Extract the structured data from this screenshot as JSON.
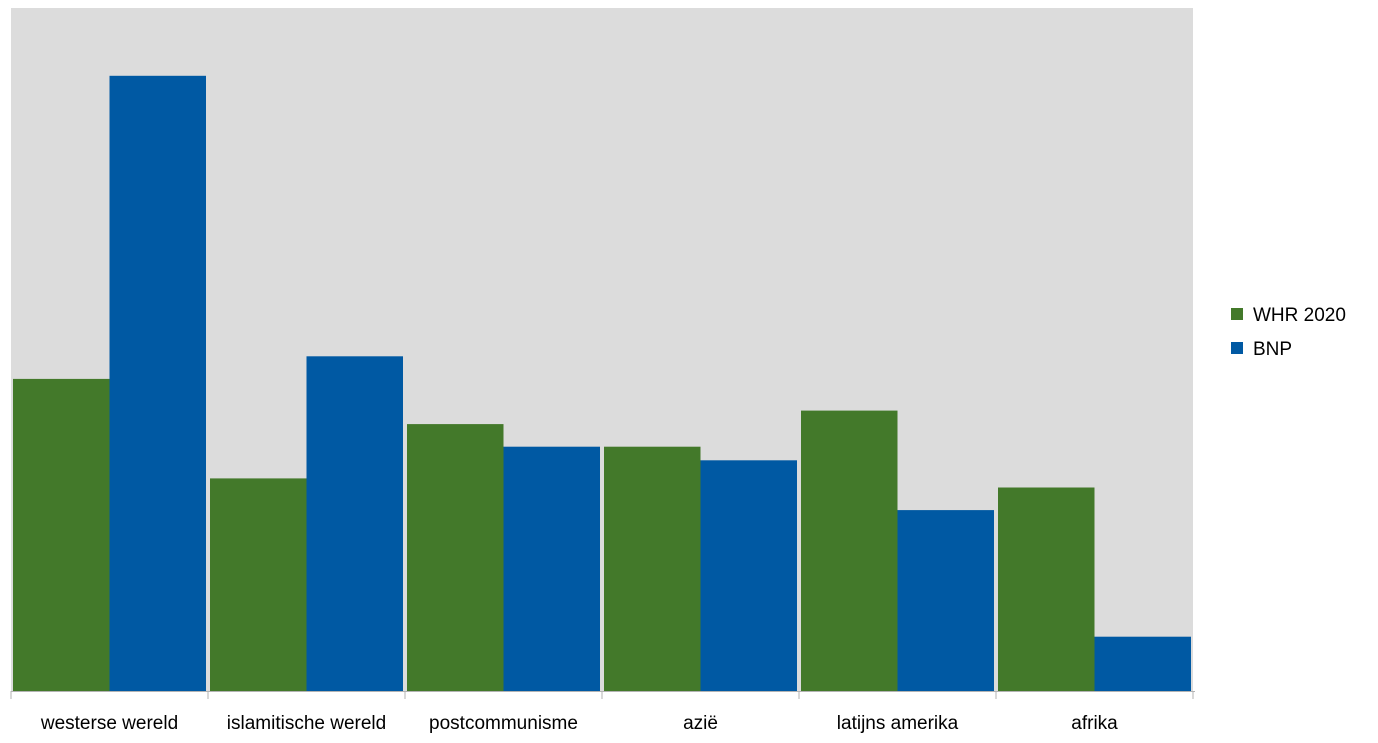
{
  "chart_data": {
    "type": "bar",
    "title": "",
    "xlabel": "",
    "ylabel": "",
    "categories": [
      "westerse wereld",
      "islamitische wereld",
      "postcommunisme",
      "azië",
      "latijns amerika",
      "afrika"
    ],
    "series": [
      {
        "name": "WHR 2020",
        "color": "#43792a",
        "values": [
          6.9,
          4.7,
          5.9,
          5.4,
          6.2,
          4.5
        ]
      },
      {
        "name": "BNP",
        "color": "#0059a3",
        "values": [
          13.6,
          7.4,
          5.4,
          5.1,
          4.0,
          1.2
        ]
      }
    ],
    "ylim": [
      0,
      15.1
    ],
    "grid": false,
    "legend_position": "right",
    "plot_background": "#dcdcdc",
    "axis_color": "#b3b3b3"
  }
}
